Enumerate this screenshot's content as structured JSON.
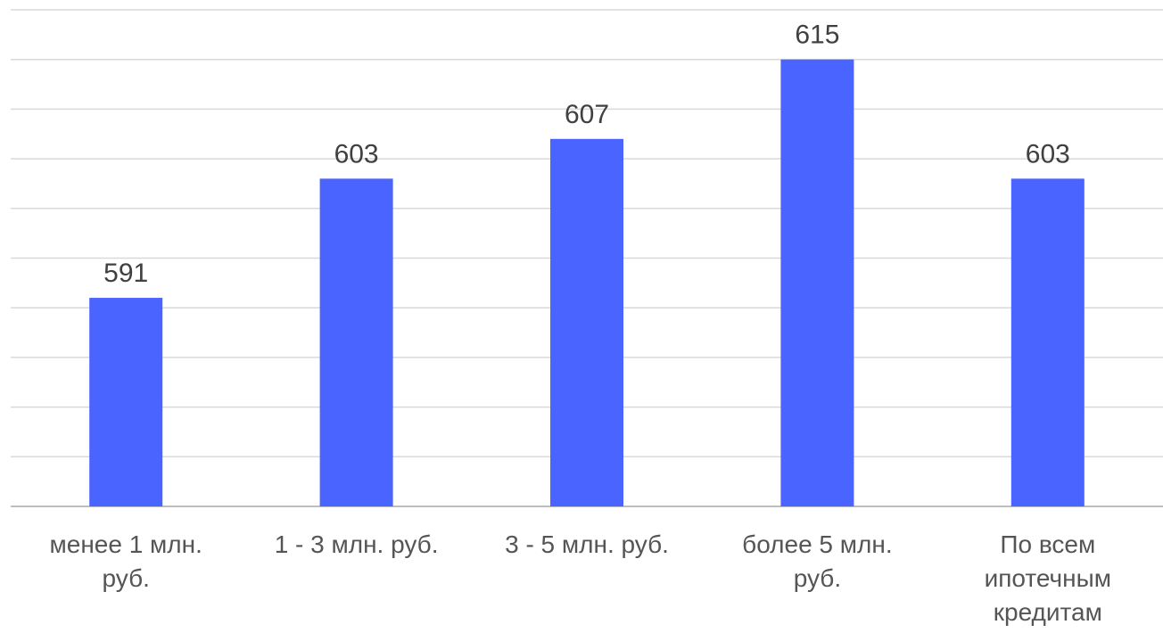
{
  "chart_data": {
    "type": "bar",
    "categories": [
      [
        "менее 1 млн.",
        "руб."
      ],
      [
        "1 - 3 млн. руб."
      ],
      [
        "3 - 5 млн. руб."
      ],
      [
        "более 5 млн.",
        "руб."
      ],
      [
        "По всем",
        "ипотечным",
        "кредитам"
      ]
    ],
    "values": [
      591,
      603,
      607,
      615,
      603
    ],
    "value_labels": [
      "591",
      "603",
      "607",
      "615",
      "603"
    ],
    "ylim": [
      570,
      620
    ],
    "y_gridline_step": 5,
    "grid": true,
    "legend": false,
    "title": "",
    "xlabel": "",
    "ylabel": "",
    "colors": {
      "bar": "#4A64FF",
      "grid": "#D9D9D9",
      "axis": "#BFBFBF",
      "value_text": "#404040",
      "category_text": "#555555"
    }
  }
}
